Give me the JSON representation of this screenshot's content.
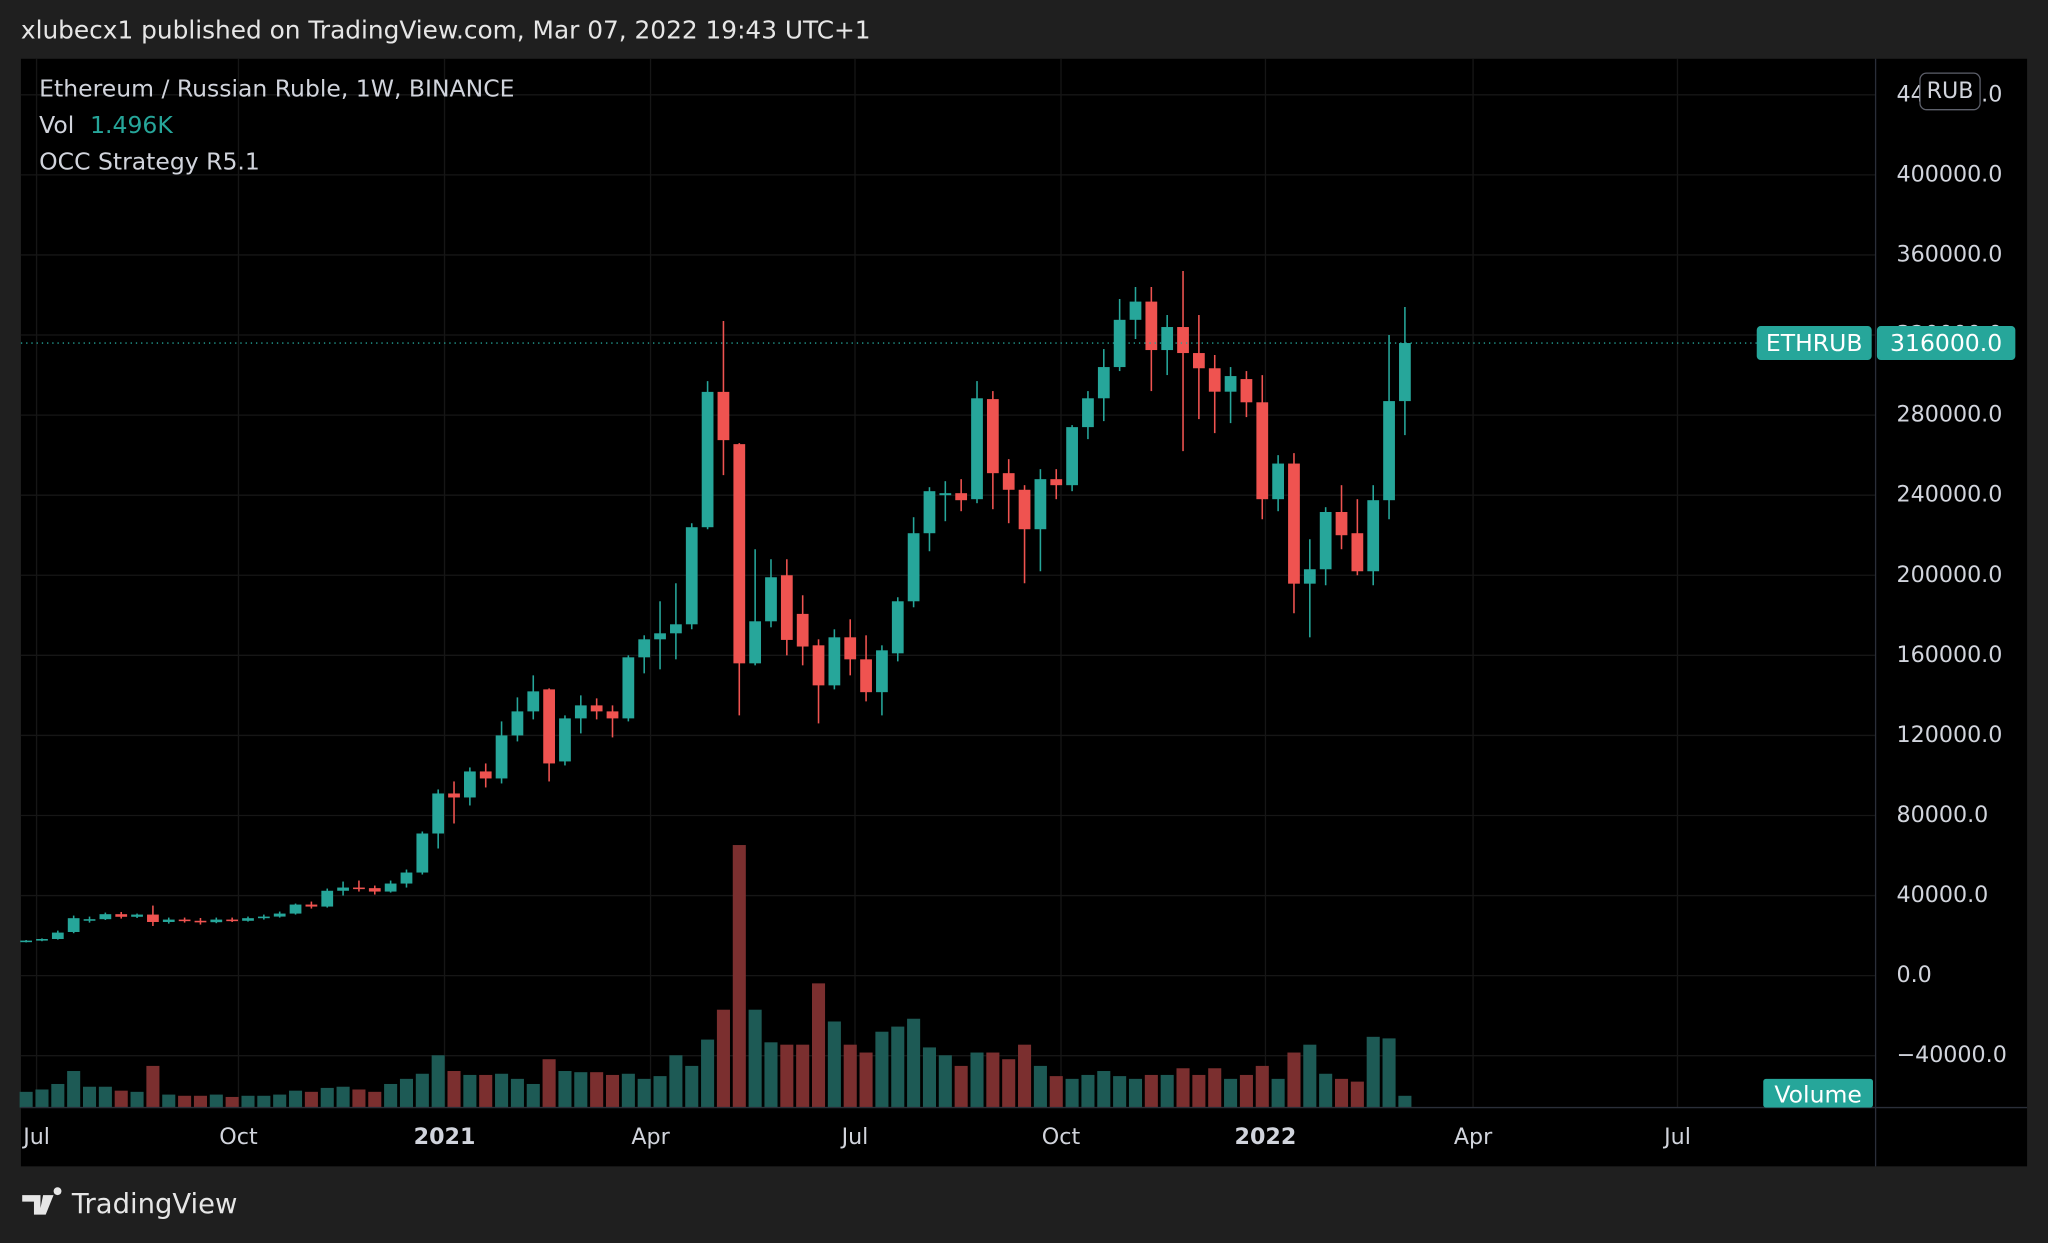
{
  "chart_data": {
    "type": "candlestick",
    "published": "xlubecx1 published on TradingView.com, Mar 07, 2022 19:43 UTC+1",
    "title": "Ethereum / Russian Ruble, 1W, BINANCE",
    "volume_title": "Vol",
    "last_volume_label": "1.496K",
    "indicator": "OCC Strategy R5.1",
    "currency": "RUB",
    "symbol": "ETHRUB",
    "last_price_label": "316000.0",
    "volume_name": "Volume",
    "brand": "TradingView",
    "up_color": "#26a69a",
    "down_color": "#ef5350",
    "volume_up_color": "#1d5a55",
    "volume_down_color": "#7b2f2f",
    "grid": true,
    "xlim": [
      -0.33,
      116.7
    ],
    "xticks": [
      {
        "value": 0.66,
        "label": "Jul"
      },
      {
        "value": 13.4,
        "label": "Oct"
      },
      {
        "value": 26.4,
        "label": "2021"
      },
      {
        "value": 39.4,
        "label": "Apr"
      },
      {
        "value": 52.3,
        "label": "Jul"
      },
      {
        "value": 65.3,
        "label": "Oct"
      },
      {
        "value": 78.2,
        "label": "2022"
      },
      {
        "value": 91.3,
        "label": "Apr"
      },
      {
        "value": 104.2,
        "label": "Jul"
      }
    ],
    "ylim": [
      -65900,
      458000
    ],
    "yticks": [
      {
        "value": -40000,
        "label": "−40000.0"
      },
      {
        "value": 0,
        "label": "0.0"
      },
      {
        "value": 40000,
        "label": "40000.0"
      },
      {
        "value": 80000,
        "label": "80000.0"
      },
      {
        "value": 120000,
        "label": "120000.0"
      },
      {
        "value": 160000,
        "label": "160000.0"
      },
      {
        "value": 200000,
        "label": "200000.0"
      },
      {
        "value": 240000,
        "label": "240000.0"
      },
      {
        "value": 280000,
        "label": "280000.0"
      },
      {
        "value": 320000,
        "label": "320000.0"
      },
      {
        "value": 360000,
        "label": "360000.0"
      },
      {
        "value": 400000,
        "label": "400000.0"
      },
      {
        "value": 440000,
        "label": "440000.0"
      }
    ],
    "open": [
      17000,
      17500,
      18300,
      21800,
      27500,
      28200,
      30700,
      29400,
      30500,
      26800,
      28000,
      27400,
      26700,
      28000,
      27400,
      28700,
      29500,
      31000,
      35500,
      34500,
      42400,
      44000,
      43700,
      42000,
      46000,
      51500,
      71000,
      91000,
      89000,
      102000,
      98500,
      120000,
      132000,
      143000,
      107000,
      128500,
      135000,
      132000,
      128500,
      159000,
      168000,
      171000,
      175500,
      224000,
      291600,
      265500,
      156000,
      177000,
      200000,
      180700,
      165000,
      145000,
      169000,
      158000,
      141600,
      161000,
      187000,
      221000,
      240000,
      241000,
      238000,
      288000,
      251000,
      242700,
      223000,
      248000,
      245000,
      274000,
      288400,
      304000,
      327600,
      336700,
      312500,
      324000,
      311000,
      303400,
      291700,
      298000,
      286400,
      238000,
      255800,
      195800,
      203000,
      231600,
      221000,
      202000,
      237500,
      287000
    ],
    "high": [
      17800,
      18600,
      22500,
      30000,
      29500,
      31500,
      31800,
      31000,
      35000,
      29000,
      29000,
      28800,
      29000,
      29000,
      29500,
      30500,
      32000,
      36000,
      37000,
      43500,
      47000,
      47500,
      45000,
      47500,
      53000,
      72000,
      93000,
      97000,
      104000,
      106000,
      127000,
      139000,
      150000,
      143500,
      130000,
      140000,
      138500,
      135000,
      160000,
      170000,
      187000,
      196000,
      226000,
      297000,
      327000,
      266000,
      213000,
      208000,
      208000,
      190000,
      168000,
      173000,
      178000,
      170000,
      165000,
      189000,
      229000,
      244000,
      247000,
      248000,
      297000,
      292000,
      258000,
      245000,
      253000,
      253000,
      275000,
      292000,
      313000,
      338000,
      344000,
      344000,
      330000,
      352000,
      330000,
      310000,
      304000,
      302000,
      300000,
      260000,
      261000,
      218000,
      234000,
      245000,
      238000,
      245000,
      320000,
      334000
    ],
    "low": [
      16600,
      17200,
      18000,
      21200,
      26500,
      27800,
      28500,
      28800,
      24800,
      26000,
      26500,
      25500,
      26200,
      26800,
      27000,
      28000,
      29000,
      30500,
      33500,
      34000,
      40000,
      42000,
      40500,
      41500,
      44000,
      50500,
      63500,
      76000,
      85000,
      94000,
      96000,
      117000,
      128000,
      97000,
      105000,
      121000,
      128000,
      119000,
      127000,
      151000,
      153000,
      158000,
      173000,
      223000,
      250000,
      130000,
      155000,
      174000,
      160000,
      155000,
      126000,
      143000,
      150000,
      137000,
      130000,
      157000,
      184000,
      212000,
      227000,
      232000,
      236000,
      233000,
      226000,
      196000,
      202000,
      238000,
      242000,
      268000,
      277000,
      302000,
      318000,
      292000,
      300000,
      262000,
      278000,
      271000,
      276000,
      279000,
      228000,
      232000,
      181000,
      169000,
      195000,
      213000,
      200000,
      195000,
      228000,
      270000
    ],
    "close": [
      17500,
      18300,
      21500,
      28700,
      28200,
      30700,
      29400,
      30500,
      26800,
      28000,
      27400,
      26700,
      28000,
      27400,
      28700,
      29500,
      31000,
      35500,
      34500,
      42400,
      44000,
      43700,
      42000,
      46000,
      51500,
      71000,
      91000,
      89000,
      102000,
      98500,
      120000,
      132000,
      142000,
      106000,
      128500,
      135000,
      132000,
      128500,
      159000,
      168000,
      171000,
      175500,
      224000,
      291600,
      267500,
      156000,
      177000,
      199000,
      167700,
      164400,
      145000,
      169000,
      158000,
      141600,
      162500,
      187000,
      221000,
      242000,
      241000,
      237500,
      288400,
      251000,
      242700,
      223000,
      248000,
      245000,
      274000,
      288400,
      304000,
      327600,
      336700,
      312500,
      324000,
      311000,
      303400,
      291700,
      299500,
      286400,
      238000,
      255800,
      195800,
      203000,
      231600,
      220000,
      202000,
      237500,
      287000,
      316000
    ],
    "volume": [
      2000,
      2300,
      3000,
      4650,
      2650,
      2650,
      2150,
      2000,
      5300,
      1650,
      1500,
      1500,
      1650,
      1350,
      1500,
      1500,
      1650,
      2150,
      2000,
      2500,
      2650,
      2300,
      2000,
      3000,
      3650,
      4300,
      6650,
      4650,
      4150,
      4150,
      4300,
      3650,
      3000,
      6150,
      4650,
      4500,
      4500,
      4150,
      4300,
      3650,
      4000,
      6650,
      5300,
      8650,
      12450,
      33400,
      12450,
      8300,
      8000,
      8000,
      15800,
      10950,
      8000,
      7000,
      9650,
      10300,
      11300,
      7650,
      6650,
      5300,
      7000,
      7000,
      6150,
      8000,
      5300,
      4000,
      3650,
      4150,
      4650,
      4000,
      3650,
      4150,
      4150,
      5000,
      4150,
      5000,
      3650,
      4150,
      5300,
      3650,
      7000,
      8000,
      4300,
      3650,
      3300,
      9000,
      8800,
      1496
    ]
  }
}
